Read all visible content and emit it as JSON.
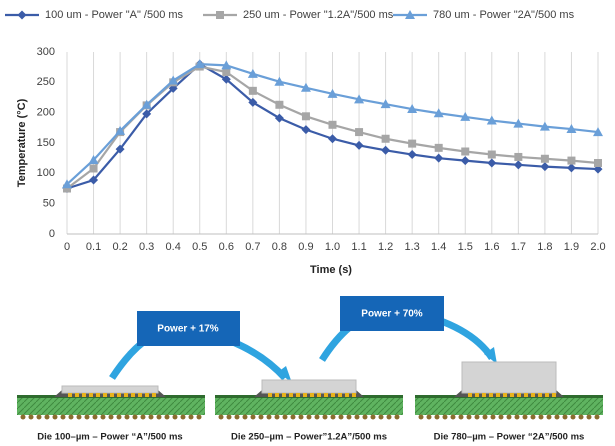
{
  "chart_data": {
    "type": "line",
    "x_label": "Time (s)",
    "y_label": "Temperature (°C)",
    "x": [
      0,
      0.1,
      0.2,
      0.3,
      0.4,
      0.5,
      0.6,
      0.7,
      0.8,
      0.9,
      1.0,
      1.1,
      1.2,
      1.3,
      1.4,
      1.5,
      1.6,
      1.7,
      1.8,
      1.9,
      2.0
    ],
    "series": [
      {
        "name": "100 um - Power \"A\" /500 ms",
        "color": "#3b5ca8",
        "marker": "diamond",
        "values": [
          75,
          89,
          140,
          198,
          240,
          280,
          255,
          217,
          191,
          172,
          157,
          146,
          138,
          131,
          125,
          121,
          117,
          114,
          111,
          109,
          107
        ]
      },
      {
        "name": "250 um - Power \"1.2A\"/500 ms",
        "color": "#a6a6a6",
        "marker": "square",
        "values": [
          75,
          108,
          168,
          212,
          250,
          276,
          267,
          236,
          213,
          194,
          180,
          168,
          157,
          149,
          142,
          136,
          131,
          127,
          124,
          121,
          117
        ]
      },
      {
        "name": "780 um - Power \"2A\"/500 ms",
        "color": "#6a9fd8",
        "marker": "triangle",
        "values": [
          82,
          122,
          170,
          213,
          253,
          280,
          278,
          264,
          251,
          241,
          231,
          222,
          214,
          206,
          199,
          193,
          187,
          182,
          177,
          173,
          168
        ]
      }
    ],
    "xlim": [
      0,
      2
    ],
    "ylim": [
      0,
      300
    ],
    "xticks": [
      0,
      0.1,
      0.2,
      0.3,
      0.4,
      0.5,
      0.6,
      0.7,
      0.8,
      0.9,
      {
        "value": 1,
        "label": "1.0"
      },
      1.1,
      1.2,
      1.3,
      1.4,
      1.5,
      1.6,
      1.7,
      1.8,
      1.9,
      {
        "value": 2,
        "label": "2.0"
      }
    ],
    "yticks": [
      0,
      50,
      100,
      150,
      200,
      250,
      300
    ],
    "grid": "x",
    "legend": "top"
  },
  "diagram": {
    "callouts": [
      "Power + 17%",
      "Power + 70%"
    ],
    "captions": [
      "Die 100–µm – Power “A”/500 ms",
      "Die 250–µm – Power”1.2A”/500 ms",
      "Die 780–µm – Power “2A”/500 ms"
    ]
  }
}
